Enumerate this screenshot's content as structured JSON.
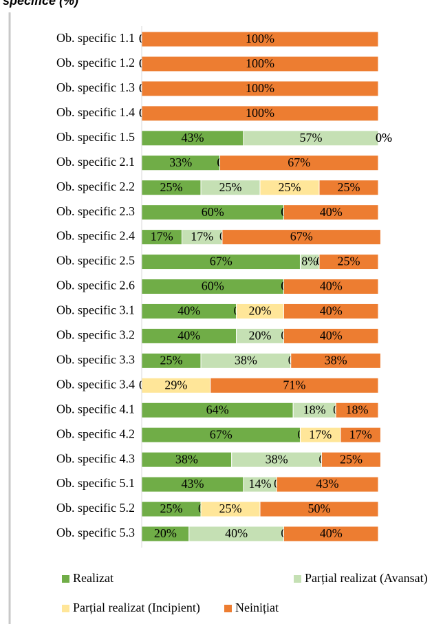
{
  "chart_data": {
    "type": "stacked_bar_horizontal",
    "title": "specifice (%)",
    "categories": [
      "Ob. specific 1.1",
      "Ob. specific 1.2",
      "Ob. specific 1.3",
      "Ob. specific 1.4",
      "Ob. specific 1.5",
      "Ob. specific 2.1",
      "Ob. specific 2.2",
      "Ob. specific 2.3",
      "Ob. specific 2.4",
      "Ob. specific 2.5",
      "Ob. specific 2.6",
      "Ob. specific 3.1",
      "Ob. specific 3.2",
      "Ob. specific 3.3",
      "Ob. specific 3.4",
      "Ob. specific 4.1",
      "Ob. specific 4.2",
      "Ob. specific 4.3",
      "Ob. specific 5.1",
      "Ob. specific 5.2",
      "Ob. specific 5.3"
    ],
    "xlim": [
      0,
      100
    ],
    "legend": "bottom",
    "series": [
      {
        "name": "Realizat",
        "color": "#70ad47",
        "values": [
          0,
          0,
          0,
          0,
          43,
          33,
          25,
          60,
          17,
          67,
          60,
          40,
          40,
          25,
          0,
          64,
          67,
          38,
          43,
          25,
          20
        ],
        "value_labels": [
          "0%",
          "0%",
          "0%",
          "0%",
          "43%",
          "33%",
          "25%",
          "60%",
          "17%",
          "67%",
          "60%",
          "40%",
          "40%",
          "25%",
          "0%",
          "64%",
          "67%",
          "38%",
          "43%",
          "25%",
          "20%"
        ]
      },
      {
        "name": "Parțial realizat (Avansat)",
        "color": "#c5e0b4",
        "values": [
          0,
          0,
          0,
          0,
          57,
          0,
          25,
          0,
          17,
          8,
          0,
          0,
          20,
          38,
          0,
          18,
          0,
          38,
          14,
          0,
          40
        ],
        "value_labels": [
          "0%",
          "0%",
          "0%",
          "0%",
          "57%",
          "0%",
          "25%",
          "0%",
          "17%",
          "8%",
          "0%",
          "0%",
          "20%",
          "38%",
          "0%",
          "18%",
          "0%",
          "38%",
          "14%",
          "0%",
          "40%"
        ]
      },
      {
        "name": "Parțial realizat (Incipient)",
        "color": "#ffe699",
        "values": [
          0,
          0,
          0,
          0,
          0,
          0,
          25,
          0,
          0,
          0,
          0,
          20,
          0,
          0,
          29,
          0,
          17,
          0,
          0,
          25,
          0
        ],
        "value_labels": [
          "0%",
          "0%",
          "0%",
          "0%",
          "0%",
          "0%",
          "25%",
          "0%",
          "0%",
          "0%",
          "0%",
          "20%",
          "0%",
          "0%",
          "29%",
          "0%",
          "17%",
          "0%",
          "0%",
          "25%",
          "0%"
        ]
      },
      {
        "name": "Neinițiat",
        "color": "#ed7d31",
        "values": [
          100,
          100,
          100,
          100,
          0,
          67,
          25,
          40,
          67,
          25,
          40,
          40,
          40,
          38,
          71,
          18,
          17,
          25,
          43,
          50,
          40
        ],
        "value_labels": [
          "100%",
          "100%",
          "100%",
          "100%",
          "0%",
          "67%",
          "25%",
          "40%",
          "67%",
          "25%",
          "40%",
          "40%",
          "40%",
          "38%",
          "71%",
          "18%",
          "17%",
          "25%",
          "43%",
          "50%",
          "40%"
        ]
      }
    ]
  }
}
